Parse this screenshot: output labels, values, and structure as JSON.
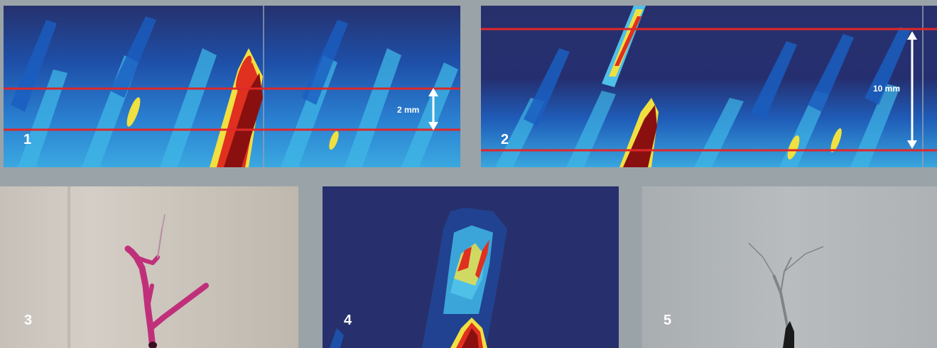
{
  "panels": [
    {
      "number": "1",
      "scale_label": "2 mm",
      "type": "ultrasonic-scan"
    },
    {
      "number": "2",
      "scale_label": "10 mm",
      "type": "ultrasonic-scan"
    },
    {
      "number": "3",
      "type": "dye-penetrant-photo"
    },
    {
      "number": "4",
      "type": "ultrasonic-scan"
    },
    {
      "number": "5",
      "type": "radiograph"
    }
  ],
  "colors": {
    "background": "#9aa3a8",
    "scan_low": "#2a3270",
    "scan_mid": "#1a5fc0",
    "scan_high": "#4fc0e8",
    "scan_peak": "#e03020",
    "scan_core": "#8a1010",
    "marker_line": "#e02828",
    "dye": "#c0307a"
  }
}
